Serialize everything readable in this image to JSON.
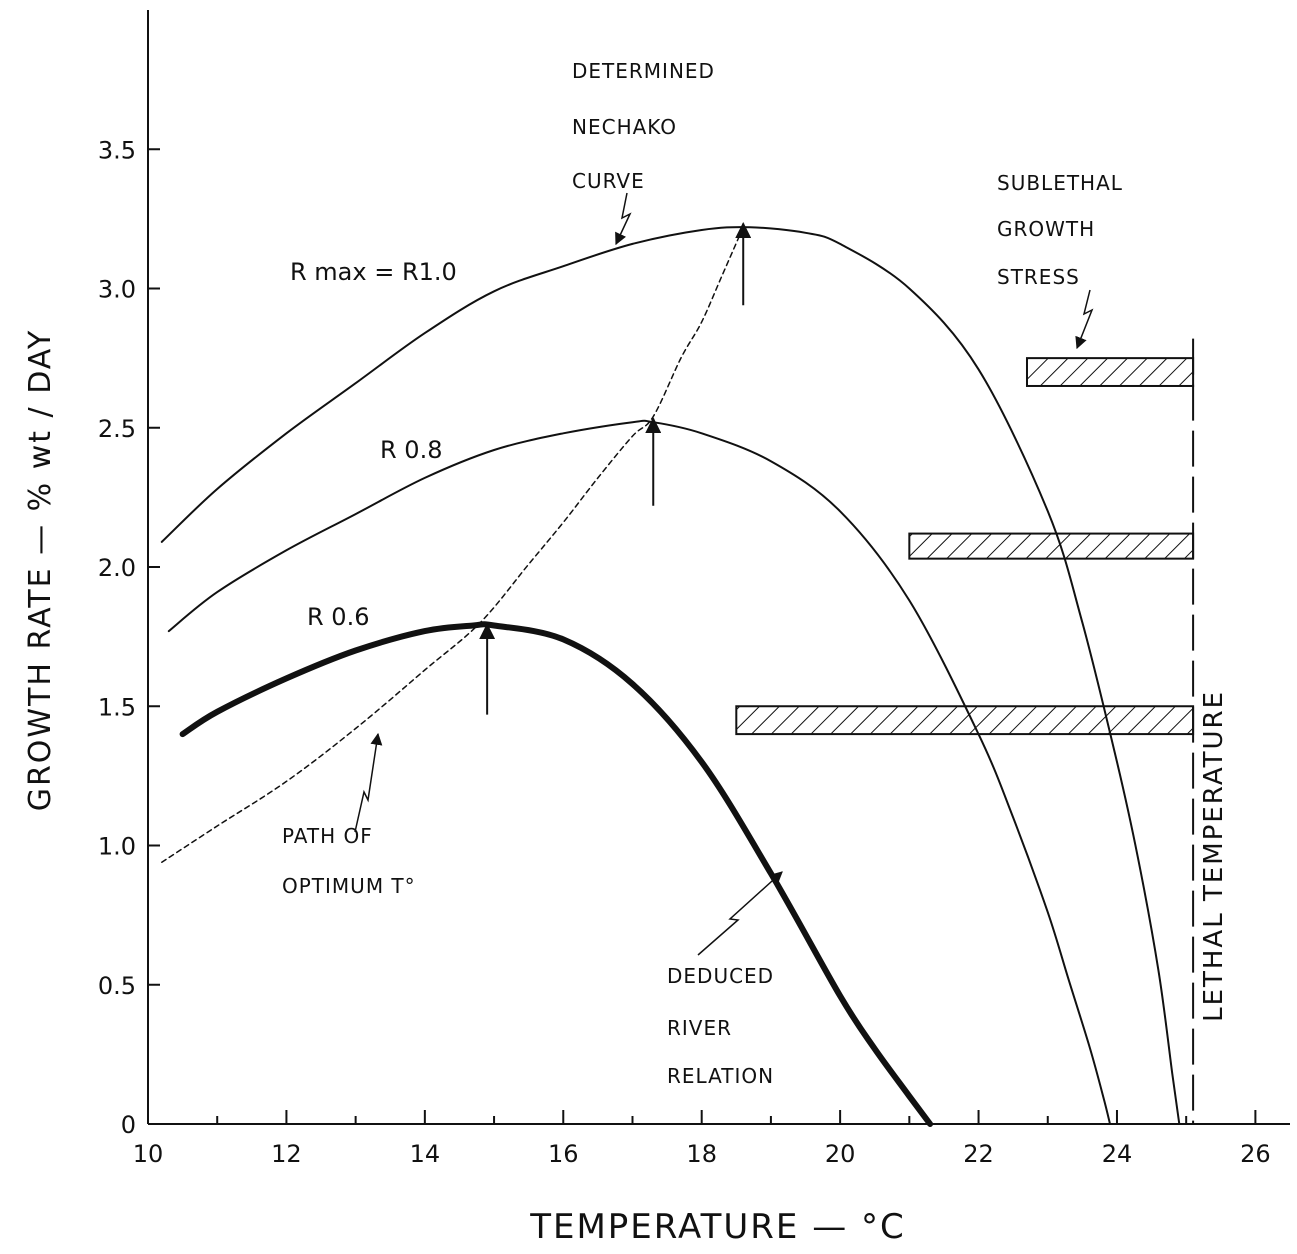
{
  "chart_data": {
    "type": "line",
    "xlabel": "TEMPERATURE — °C",
    "ylabel": "GROWTH RATE — % wt / DAY",
    "xlim": [
      10,
      26.5
    ],
    "ylim": [
      0,
      4.0
    ],
    "x_ticks": [
      10,
      12,
      14,
      16,
      18,
      20,
      22,
      24,
      26
    ],
    "x_tick_labels": [
      "10",
      "12",
      "14",
      "16",
      "18",
      "20",
      "22",
      "24",
      "26"
    ],
    "y_ticks": [
      0,
      0.5,
      1.0,
      1.5,
      2.0,
      2.5,
      3.0,
      3.5
    ],
    "y_tick_labels": [
      "0",
      "0.5",
      "1.0",
      "1.5",
      "2.0",
      "2.5",
      "3.0",
      "3.5"
    ],
    "grid": false,
    "series": [
      {
        "name": "Rmax = R1.0",
        "style": "solid",
        "width": 2,
        "x": [
          10.2,
          11,
          12,
          13,
          14,
          15,
          16,
          17,
          18,
          18.7,
          19.5,
          20,
          21,
          22,
          23,
          23.5,
          24,
          24.3,
          24.6,
          24.8,
          24.9
        ],
        "y": [
          2.09,
          2.28,
          2.48,
          2.66,
          2.84,
          2.99,
          3.08,
          3.16,
          3.21,
          3.22,
          3.2,
          3.16,
          3.0,
          2.71,
          2.2,
          1.8,
          1.3,
          0.96,
          0.55,
          0.18,
          0
        ]
      },
      {
        "name": "R 0.8",
        "style": "solid",
        "width": 2,
        "x": [
          10.3,
          11,
          12,
          13,
          14,
          15,
          16,
          17,
          17.3,
          18,
          19,
          20,
          21,
          22,
          22.5,
          23,
          23.3,
          23.6,
          23.8,
          23.9
        ],
        "y": [
          1.77,
          1.91,
          2.06,
          2.19,
          2.32,
          2.42,
          2.48,
          2.52,
          2.52,
          2.48,
          2.38,
          2.2,
          1.88,
          1.4,
          1.1,
          0.76,
          0.52,
          0.28,
          0.1,
          0
        ]
      },
      {
        "name": "R 0.6",
        "style": "solid",
        "width": 6,
        "x": [
          10.5,
          11,
          12,
          13,
          14,
          14.7,
          15,
          16,
          17,
          18,
          19,
          20,
          20.5,
          21,
          21.3
        ],
        "y": [
          1.4,
          1.48,
          1.6,
          1.7,
          1.77,
          1.79,
          1.79,
          1.74,
          1.58,
          1.3,
          0.9,
          0.46,
          0.27,
          0.1,
          0
        ]
      },
      {
        "name": "PATH OF OPTIMUM T°",
        "style": "dashed",
        "width": 1.5,
        "x": [
          10.2,
          11,
          12,
          13,
          14,
          14.8,
          15.5,
          16,
          16.5,
          17,
          17.3,
          17.7,
          18,
          18.3,
          18.6
        ],
        "y": [
          0.94,
          1.07,
          1.23,
          1.42,
          1.63,
          1.8,
          2.01,
          2.16,
          2.32,
          2.47,
          2.54,
          2.75,
          2.88,
          3.05,
          3.22
        ]
      }
    ],
    "optimum_markers": [
      {
        "x": 18.6,
        "y_from": 2.94,
        "y_to": 3.24
      },
      {
        "x": 17.3,
        "y_from": 2.22,
        "y_to": 2.54
      },
      {
        "x": 14.9,
        "y_from": 1.47,
        "y_to": 1.8
      }
    ],
    "stress_bands": [
      {
        "x_from": 22.7,
        "x_to": 25.1,
        "y_from": 2.65,
        "y_to": 2.75
      },
      {
        "x_from": 21.0,
        "x_to": 25.1,
        "y_from": 2.03,
        "y_to": 2.12
      },
      {
        "x_from": 18.5,
        "x_to": 25.1,
        "y_from": 1.4,
        "y_to": 1.5
      }
    ],
    "lethal_temperature_x": 25.1,
    "labels": {
      "rmax": "R max  =  R1.0",
      "r08": "R 0.8",
      "r06": "R 0.6",
      "determined": [
        "DETERMINED",
        "NECHAKO",
        "CURVE"
      ],
      "sublethal": [
        "SUBLETHAL",
        "GROWTH",
        "STRESS"
      ],
      "path": [
        "PATH  OF",
        "OPTIMUM   T°"
      ],
      "deduced": [
        "DEDUCED",
        "RIVER",
        "RELATION"
      ],
      "lethal": "LETHAL   TEMPERATURE"
    }
  }
}
